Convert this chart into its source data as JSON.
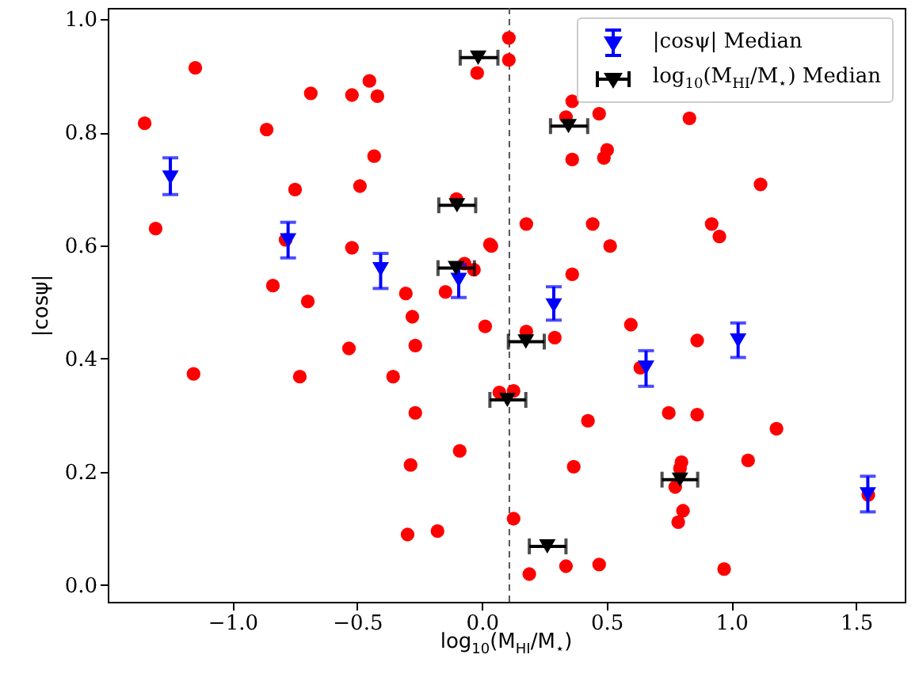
{
  "chart_data": {
    "type": "scatter",
    "xlabel": "log$_{10}$(M$_{HI}$/M$_{⋆}$)",
    "ylabel": "|cosψ|",
    "xlim": [
      -1.5,
      1.695
    ],
    "ylim": [
      -0.03,
      1.02
    ],
    "xticks": [
      {
        "value": -1,
        "label": "−1.0"
      },
      {
        "value": -0.5,
        "label": "−0.5"
      },
      {
        "value": 0,
        "label": "0.0"
      },
      {
        "value": 0.5,
        "label": "0.5"
      },
      {
        "value": 1,
        "label": "1.0"
      },
      {
        "value": 1.5,
        "label": "1.5"
      }
    ],
    "yticks": [
      {
        "value": 0,
        "label": "0.0"
      },
      {
        "value": 0.2,
        "label": "0.2"
      },
      {
        "value": 0.4,
        "label": "0.4"
      },
      {
        "value": 0.6,
        "label": "0.6"
      },
      {
        "value": 0.8,
        "label": "0.8"
      },
      {
        "value": 1,
        "label": "1.0"
      }
    ],
    "grid": false,
    "legend": "top right",
    "ref_lines": [
      {
        "axis": "x",
        "value": 0.11,
        "color": "#555555",
        "line_style": "dashed"
      }
    ],
    "series": [
      {
        "marker": "circle",
        "color": "#ff0000",
        "x": [
          -1.352,
          -1.308,
          -1.149,
          -1.156,
          -0.863,
          -0.686,
          -0.521,
          -0.451,
          -0.419,
          -0.432,
          -0.489,
          -0.749,
          -0.787,
          -0.521,
          -0.838,
          -0.698,
          -0.305,
          -0.146,
          -0.102,
          -0.07,
          -0.032,
          -0.019,
          0.032,
          0.108,
          0.108,
          0.362,
          0.337,
          0.47,
          0.832,
          0.502,
          0.489,
          0.362,
          1.117,
          0.178,
          0.444,
          0.921,
          0.952,
          0.038,
          0.514,
          0.362,
          -0.73,
          -0.533,
          -0.356,
          -0.279,
          -0.267,
          -0.267,
          -0.089,
          -0.286,
          -0.298,
          -0.178,
          0.013,
          0.07,
          0.127,
          0.178,
          0.292,
          0.597,
          0.863,
          0.635,
          0.425,
          0.749,
          0.863,
          1.181,
          0.368,
          0.8,
          0.794,
          0.775,
          1.067,
          1.549,
          0.127,
          0.806,
          0.787,
          0.337,
          0.47,
          0.19,
          0.971
        ],
        "values": [
          0.816,
          0.63,
          0.914,
          0.373,
          0.805,
          0.869,
          0.866,
          0.891,
          0.864,
          0.758,
          0.705,
          0.699,
          0.61,
          0.596,
          0.529,
          0.501,
          0.515,
          0.518,
          0.682,
          0.568,
          0.557,
          0.905,
          0.602,
          0.967,
          0.928,
          0.855,
          0.827,
          0.833,
          0.825,
          0.769,
          0.755,
          0.752,
          0.708,
          0.638,
          0.638,
          0.638,
          0.616,
          0.599,
          0.599,
          0.549,
          0.368,
          0.418,
          0.368,
          0.474,
          0.423,
          0.304,
          0.237,
          0.212,
          0.089,
          0.095,
          0.457,
          0.34,
          0.343,
          0.448,
          0.437,
          0.46,
          0.432,
          0.384,
          0.29,
          0.304,
          0.301,
          0.276,
          0.209,
          0.217,
          0.206,
          0.173,
          0.22,
          0.159,
          0.117,
          0.131,
          0.111,
          0.033,
          0.036,
          0.019,
          0.028
        ]
      },
      {
        "name": "|cosψ| Median",
        "marker": "triangle",
        "color": "#0000ff",
        "x": [
          -1.249,
          -0.777,
          -0.406,
          -0.093,
          0.288,
          0.658,
          1.027,
          1.547
        ],
        "values": [
          0.72,
          0.609,
          0.558,
          0.539,
          0.494,
          0.384,
          0.432,
          0.16
        ],
        "errors": [
          [
            0.69,
            0.755
          ],
          [
            0.578,
            0.641
          ],
          [
            0.524,
            0.586
          ],
          [
            0.508,
            0.566
          ],
          [
            0.468,
            0.527
          ],
          [
            0.351,
            0.414
          ],
          [
            0.402,
            0.463
          ],
          [
            0.129,
            0.192
          ]
        ]
      },
      {
        "name": "log$_{10}$(M$_{HI}$/M$_{⋆}$) Median",
        "marker": "triangle",
        "color": "#000000",
        "x": [
          -0.015,
          -0.1,
          -0.104,
          0.347,
          0.176,
          0.102,
          0.794,
          0.262
        ],
        "values": [
          0.932,
          0.671,
          0.56,
          0.811,
          0.43,
          0.327,
          0.186,
          0.068
        ],
        "xerrors": [
          [
            -0.087,
            0.064
          ],
          [
            -0.173,
            -0.025
          ],
          [
            -0.176,
            -0.03
          ],
          [
            0.275,
            0.424
          ],
          [
            0.106,
            0.25
          ],
          [
            0.032,
            0.176
          ],
          [
            0.722,
            0.865
          ],
          [
            0.19,
            0.337
          ]
        ]
      }
    ]
  }
}
